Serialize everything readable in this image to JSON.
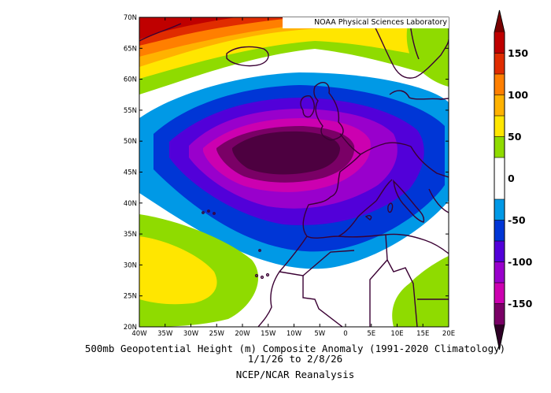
{
  "credit": "NOAA Physical Sciences Laboratory",
  "caption": {
    "line1": "500mb Geopotential Height (m) Composite Anomaly (1991-2020 Climatology)",
    "line2": "1/1/26  to 2/8/26",
    "line3": "NCEP/NCAR Reanalysis"
  },
  "map": {
    "lon_range": [
      -40,
      20
    ],
    "lat_range": [
      20,
      70
    ],
    "lon_ticks": [
      "40W",
      "35W",
      "30W",
      "25W",
      "20W",
      "15W",
      "10W",
      "5W",
      "0",
      "5E",
      "10E",
      "15E",
      "20E"
    ],
    "lat_ticks": [
      "20N",
      "25N",
      "30N",
      "35N",
      "40N",
      "45N",
      "50N",
      "55N",
      "60N",
      "65N",
      "70N"
    ],
    "anomaly_center": {
      "lon": -10,
      "lat": 49,
      "sign": "negative"
    },
    "notable_features": [
      "deep negative anomaly west of Europe",
      "positive anomaly near Greenland",
      "positive anomaly subtropical Atlantic",
      "positive anomaly over Libya/Egypt"
    ]
  },
  "colorbar": {
    "labels": [
      "150",
      "100",
      "50",
      "0",
      "-50",
      "-100",
      "-150"
    ],
    "colors": {
      "pos150": "#bf0000",
      "pos125": "#e02c00",
      "pos100": "#ff7f00",
      "pos75": "#ffb200",
      "pos50": "#ffe600",
      "pos25": "#8fdb00",
      "zero": "#ffffff",
      "neg25": "#0099e6",
      "neg50": "#0036d6",
      "neg75": "#5200d9",
      "neg100": "#9900cc",
      "neg125": "#cc00b0",
      "neg150": "#7a0066",
      "neg175": "#4d0040"
    }
  }
}
